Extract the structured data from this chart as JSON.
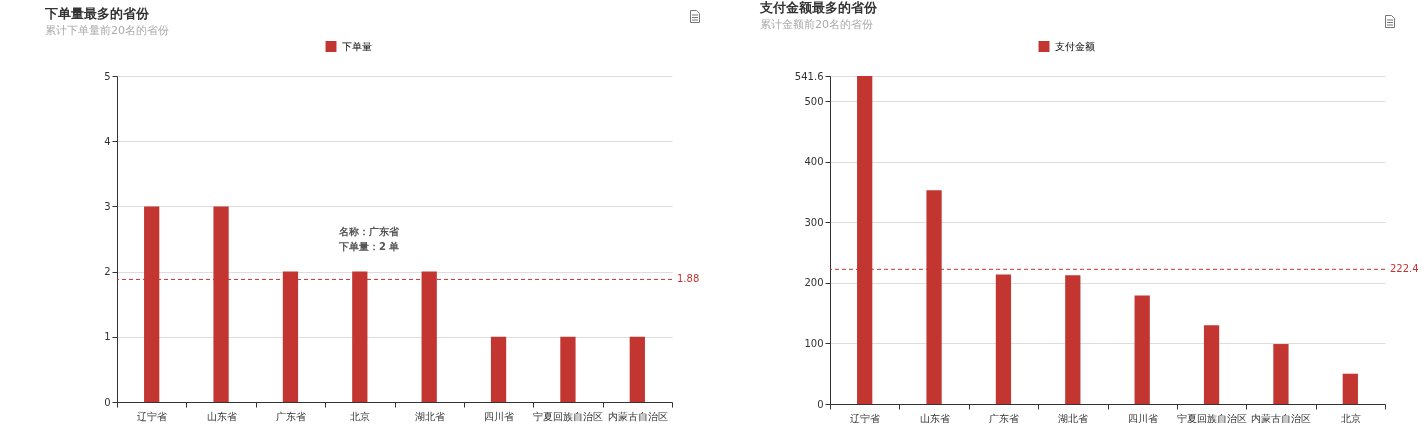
{
  "chart_data": [
    {
      "type": "bar",
      "title": "下单量最多的省份",
      "subtitle": "累计下单量前20名的省份",
      "categories": [
        "辽宁省",
        "山东省",
        "广东省",
        "北京",
        "湖北省",
        "四川省",
        "宁夏回族自治区",
        "内蒙古自治区"
      ],
      "series": [
        {
          "name": "下单量",
          "color": "#c23531",
          "values": [
            3,
            3,
            2,
            2,
            2,
            1,
            1,
            1
          ]
        }
      ],
      "ylim": [
        0,
        5
      ],
      "yticks": [
        0,
        1,
        2,
        3,
        4,
        5
      ],
      "grid": "y",
      "legend": "top",
      "ref_lines": [
        {
          "axis": "y",
          "value": 1.88,
          "label": "1.88",
          "color": "#c23531",
          "line_style": "dashed"
        }
      ],
      "annotations": [
        "名称：广东省",
        "下单量：2 单"
      ]
    },
    {
      "type": "bar",
      "title": "支付金额最多的省份",
      "subtitle": "累计金额前20名的省份",
      "categories": [
        "辽宁省",
        "山东省",
        "广东省",
        "湖北省",
        "四川省",
        "宁夏回族自治区",
        "内蒙古自治区",
        "北京"
      ],
      "series": [
        {
          "name": "支付金额",
          "color": "#c23531",
          "values": [
            541.6,
            353,
            214,
            212.5,
            179,
            130,
            99,
            50
          ]
        }
      ],
      "ylim": [
        0,
        541.6
      ],
      "yticks": [
        0,
        100,
        200,
        300,
        400,
        500,
        541.6
      ],
      "grid": "y",
      "legend": "top",
      "ref_lines": [
        {
          "axis": "y",
          "value": 222.4,
          "label": "222.4",
          "color": "#c23531",
          "line_style": "dashed"
        }
      ]
    }
  ]
}
